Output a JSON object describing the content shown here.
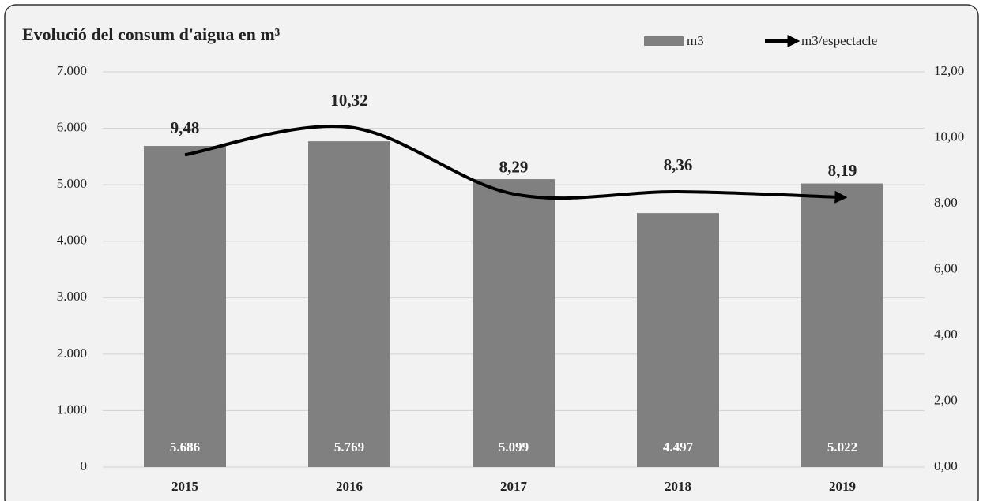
{
  "chart_data": {
    "type": "bar_line",
    "title": "Evolució del consum d'aigua en m³",
    "categories": [
      "2015",
      "2016",
      "2017",
      "2018",
      "2019"
    ],
    "series": [
      {
        "name": "m3",
        "type": "bar",
        "color": "#808080",
        "values": [
          5686,
          5769,
          5099,
          4497,
          5022
        ],
        "value_labels": [
          "5.686",
          "5.769",
          "5.099",
          "4.497",
          "5.022"
        ]
      },
      {
        "name": "m3/espectacle",
        "type": "line",
        "axis": "y2",
        "color": "#000000",
        "values": [
          9.48,
          10.32,
          8.29,
          8.36,
          8.19
        ],
        "value_labels": [
          "9,48",
          "10,32",
          "8,29",
          "8,36",
          "8,19"
        ]
      }
    ],
    "ylim": [
      0,
      7000
    ],
    "yticks": [
      0,
      {
        "value": 1000,
        "label": "1.000"
      },
      {
        "value": 2000,
        "label": "2.000"
      },
      {
        "value": 3000,
        "label": "3.000"
      },
      {
        "value": 4000,
        "label": "4.000"
      },
      {
        "value": 5000,
        "label": "5.000"
      },
      {
        "value": 6000,
        "label": "6.000"
      },
      {
        "value": 7000,
        "label": "7.000"
      }
    ],
    "y2lim": [
      0,
      12
    ],
    "y2ticks": [
      {
        "value": 0,
        "label": "0,00"
      },
      {
        "value": 2,
        "label": "2,00"
      },
      {
        "value": 4,
        "label": "4,00"
      },
      {
        "value": 6,
        "label": "6,00"
      },
      {
        "value": 8,
        "label": "8,00"
      },
      {
        "value": 10,
        "label": "10,00"
      },
      {
        "value": 12,
        "label": "12,00"
      }
    ],
    "grid": true
  }
}
